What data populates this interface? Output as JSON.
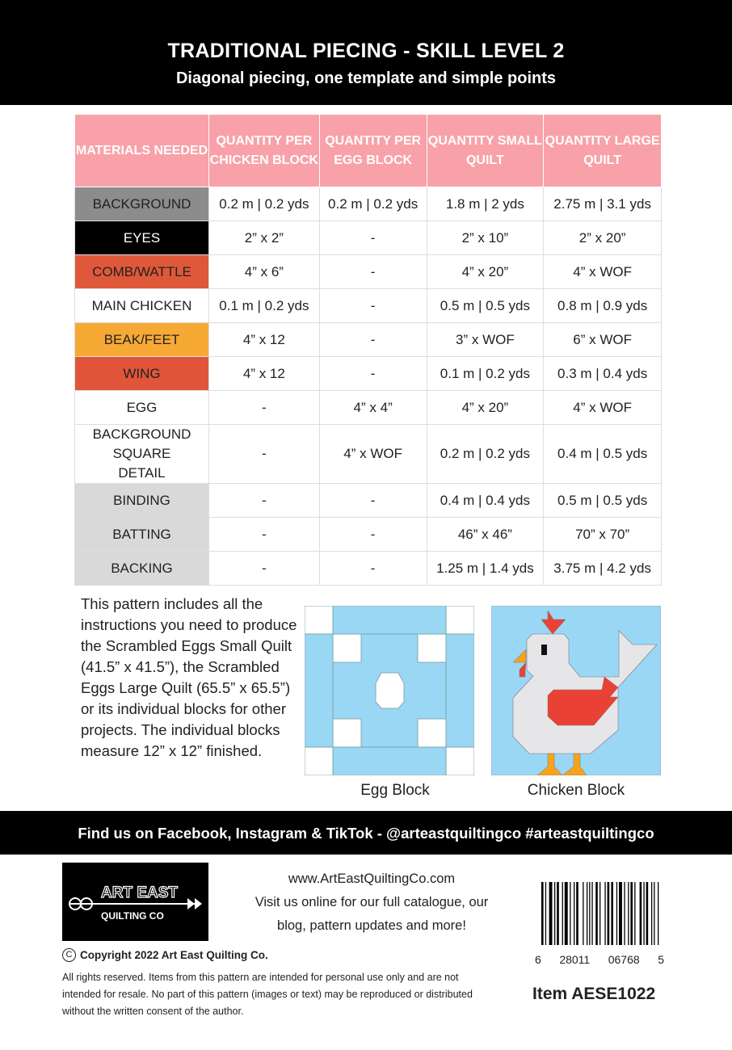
{
  "header": {
    "title": "TRADITIONAL PIECING - SKILL LEVEL 2",
    "subtitle": "Diagonal piecing, one template and simple points"
  },
  "table": {
    "columns": [
      "MATERIALS NEEDED",
      "QUANTITY PER CHICKEN BLOCK",
      "QUANTITY PER EGG BLOCK",
      "QUANTITY SMALL QUILT",
      "QUANTITY LARGE QUILT"
    ],
    "rows": [
      {
        "label": "BACKGROUND",
        "color": "#8c8c8c",
        "text_color": "#222",
        "cells": [
          "0.2 m  | 0.2 yds",
          "0.2 m | 0.2 yds",
          "1.8 m | 2 yds",
          "2.75 m | 3.1 yds"
        ]
      },
      {
        "label": "EYES",
        "color": "#000000",
        "text_color": "#ffffff",
        "cells": [
          "2” x 2”",
          "-",
          "2” x 10”",
          "2” x 20”"
        ]
      },
      {
        "label": "COMB/WATTLE",
        "color": "#e0583a",
        "text_color": "#222",
        "cells": [
          "4” x 6”",
          "-",
          "4” x 20”",
          "4” x WOF"
        ]
      },
      {
        "label": "MAIN CHICKEN",
        "color": "#ffffff",
        "text_color": "#222",
        "cells": [
          "0.1 m | 0.2 yds",
          "-",
          "0.5 m | 0.5 yds",
          "0.8 m | 0.9 yds"
        ]
      },
      {
        "label": "BEAK/FEET",
        "color": "#f7a935",
        "text_color": "#222",
        "cells": [
          "4” x 12",
          "-",
          "3” x WOF",
          "6” x WOF"
        ]
      },
      {
        "label": "WING",
        "color": "#e0553a",
        "text_color": "#222",
        "cells": [
          "4” x 12",
          "-",
          "0.1 m | 0.2 yds",
          "0.3 m | 0.4 yds"
        ]
      },
      {
        "label": "EGG",
        "color": "#ffffff",
        "text_color": "#222",
        "cells": [
          "-",
          "4” x 4”",
          "4” x 20”",
          "4” x WOF"
        ]
      },
      {
        "label": "BACKGROUND SQUARE DETAIL",
        "color": "#ffffff",
        "text_color": "#222",
        "cells": [
          "-",
          "4” x WOF",
          "0.2 m | 0.2 yds",
          "0.4 m | 0.5 yds"
        ]
      },
      {
        "label": "BINDING",
        "color": "#d9d9d9",
        "text_color": "#222",
        "cells": [
          "-",
          "-",
          "0.4 m | 0.4 yds",
          "0.5 m | 0.5 yds"
        ]
      },
      {
        "label": "BATTING",
        "color": "#d9d9d9",
        "text_color": "#222",
        "cells": [
          "-",
          "-",
          "46” x 46”",
          "70” x 70”"
        ]
      },
      {
        "label": "BACKING",
        "color": "#d9d9d9",
        "text_color": "#222",
        "cells": [
          "-",
          "-",
          "1.25 m | 1.4 yds",
          "3.75 m | 4.2 yds"
        ]
      }
    ]
  },
  "intro": "This pattern includes all the instructions you need to produce the Scrambled Eggs Small Quilt (41.5” x 41.5”), the Scrambled Eggs Large Quilt (65.5” x 65.5”) or its individual blocks for other projects. The individual blocks measure 12” x 12” finished.",
  "blocks": {
    "egg_caption": "Egg Block",
    "chicken_caption": "Chicken Block"
  },
  "colors": {
    "sky": "#9ad7f5",
    "chicken": "#e6e6e8",
    "red": "#ea4135",
    "orange": "#f7a21b",
    "header_pink": "#f9a1a8"
  },
  "social": "Find us on Facebook, Instagram & TikTok - @arteastquiltingco #arteastquiltingco",
  "logo": {
    "line1": "ART EAST",
    "line2": "QUILTING CO"
  },
  "web": {
    "url": "www.ArtEastQuiltingCo.com",
    "line1": "Visit us online for our full catalogue, our",
    "line2": "blog, pattern updates and more!"
  },
  "copyright": "Copyright 2022 Art East Quilting Co.",
  "legal": "All rights reserved. Items from this pattern are intended for personal use only and are not intended for resale. No part of this pattern (images or text) may be reproduced or distributed without the written consent of the author.",
  "barcode": {
    "digits": [
      "6",
      "28011",
      "06768",
      "5"
    ]
  },
  "item": "Item AESE1022"
}
